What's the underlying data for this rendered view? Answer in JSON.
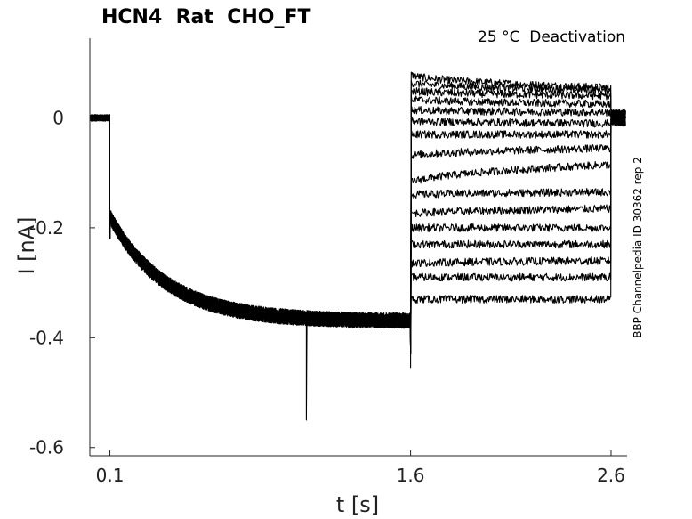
{
  "chart_data": {
    "type": "line",
    "title": "HCN4  Rat  CHO_FT",
    "condition_label": "25 °C  Deactivation",
    "side_label": "BBP Channelpedia ID 30362 rep 2",
    "xlabel": "t [s]",
    "ylabel": "I [nA]",
    "xlim": [
      0.0,
      2.68
    ],
    "ylim": [
      -0.615,
      0.145
    ],
    "x_ticks": [
      0.1,
      1.6,
      2.6
    ],
    "x_tick_labels": [
      "0.1",
      "1.6",
      "2.6"
    ],
    "y_ticks": [
      0,
      -0.2,
      -0.4,
      -0.6
    ],
    "y_tick_labels": [
      "0",
      "-0.2",
      "-0.4",
      "-0.6"
    ],
    "grid": false,
    "legend": "none",
    "line_color": "#000000",
    "protocol": {
      "baseline_end_s": 0.1,
      "activation_end_s": 1.6,
      "step_end_s": 2.6,
      "holding_current_nA": 0.0,
      "activation_onset_nA": -0.18,
      "activation_steady_nA": -0.37,
      "activation_tau_s": 0.28
    },
    "series": [
      {
        "step_start_nA": 0.08,
        "step_end_nA": 0.055
      },
      {
        "step_start_nA": 0.065,
        "step_end_nA": 0.05
      },
      {
        "step_start_nA": 0.05,
        "step_end_nA": 0.04
      },
      {
        "step_start_nA": 0.035,
        "step_end_nA": 0.025
      },
      {
        "step_start_nA": 0.015,
        "step_end_nA": 0.01
      },
      {
        "step_start_nA": -0.005,
        "step_end_nA": -0.01
      },
      {
        "step_start_nA": -0.03,
        "step_end_nA": -0.03
      },
      {
        "step_start_nA": -0.07,
        "step_end_nA": -0.055
      },
      {
        "step_start_nA": -0.12,
        "step_end_nA": -0.085
      },
      {
        "step_start_nA": -0.14,
        "step_end_nA": -0.135
      },
      {
        "step_start_nA": -0.175,
        "step_end_nA": -0.165
      },
      {
        "step_start_nA": -0.2,
        "step_end_nA": -0.2
      },
      {
        "step_start_nA": -0.23,
        "step_end_nA": -0.23
      },
      {
        "step_start_nA": -0.265,
        "step_end_nA": -0.26
      },
      {
        "step_start_nA": -0.29,
        "step_end_nA": -0.29
      },
      {
        "step_start_nA": -0.33,
        "step_end_nA": -0.33
      }
    ]
  }
}
